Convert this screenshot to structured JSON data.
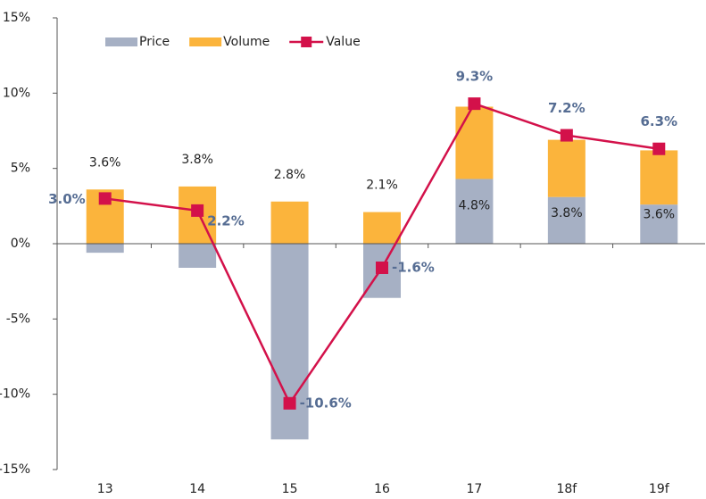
{
  "chart_data": {
    "type": "bar",
    "categories": [
      "13",
      "14",
      "15",
      "16",
      "17",
      "18f",
      "19f"
    ],
    "series": [
      {
        "name": "Price",
        "type": "bar",
        "color": "#a6b0c4",
        "values": [
          -0.6,
          -1.6,
          -13.0,
          -3.6,
          4.3,
          3.1,
          2.6
        ]
      },
      {
        "name": "Volume",
        "type": "bar",
        "color": "#fbb43c",
        "values": [
          3.6,
          3.8,
          2.8,
          2.1,
          4.8,
          3.8,
          3.6
        ],
        "value_labels": [
          "3.6%",
          "3.8%",
          "2.8%",
          "2.1%",
          "4.8%",
          "3.8%",
          "3.6%"
        ]
      },
      {
        "name": "Value",
        "type": "line",
        "color": "#d3114a",
        "values": [
          3.0,
          2.2,
          -10.6,
          -1.6,
          9.3,
          7.2,
          6.3
        ],
        "value_labels": [
          "3.0%",
          "2.2%",
          "-10.6%",
          "-1.6%",
          "9.3%",
          "7.2%",
          "6.3%"
        ]
      }
    ],
    "stacked": true,
    "ylim": [
      -15,
      15
    ],
    "yticks": [
      {
        "value": -15,
        "label": "-15%"
      },
      {
        "value": -10,
        "label": "-10%"
      },
      {
        "value": -5,
        "label": "-5%"
      },
      {
        "value": 0,
        "label": "0%"
      },
      {
        "value": 5,
        "label": "5%"
      },
      {
        "value": 10,
        "label": "10%"
      },
      {
        "value": 15,
        "label": "15%"
      }
    ],
    "legend": "top-left"
  }
}
